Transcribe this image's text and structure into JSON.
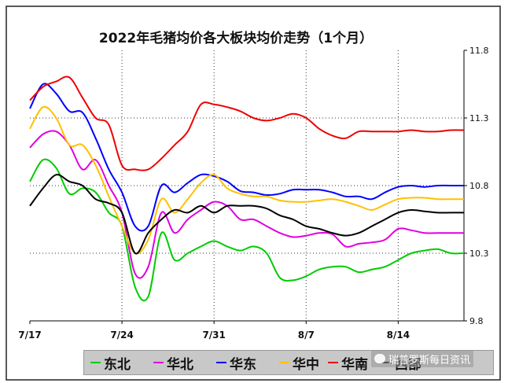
{
  "chart_data": {
    "type": "line",
    "title": "2022年毛猪均价各大板块均价走势（1个月）",
    "x_tick_labels": [
      "7/17",
      "7/24",
      "7/31",
      "8/7",
      "8/14"
    ],
    "y_tick_labels": [
      "11.8",
      "11.3",
      "10.8",
      "10.3",
      "9.8"
    ],
    "ylim": [
      9.8,
      11.8
    ],
    "xlim": [
      0,
      33
    ],
    "grid": "dotted",
    "legend_position": "bottom",
    "x": [
      0,
      1,
      2,
      3,
      4,
      5,
      6,
      7,
      8,
      9,
      10,
      11,
      12,
      13,
      14,
      15,
      16,
      17,
      18,
      19,
      20,
      21,
      22,
      23,
      24,
      25,
      26,
      27,
      28,
      29,
      30,
      31,
      32,
      33
    ],
    "series": [
      {
        "name": "东北",
        "color": "#00cc00",
        "values": [
          10.83,
          10.99,
          10.93,
          10.74,
          10.78,
          10.75,
          10.6,
          10.5,
          10.05,
          9.98,
          10.45,
          10.25,
          10.3,
          10.35,
          10.39,
          10.35,
          10.32,
          10.35,
          10.3,
          10.12,
          10.1,
          10.13,
          10.18,
          10.2,
          10.2,
          10.16,
          10.18,
          10.2,
          10.25,
          10.3,
          10.32,
          10.33,
          10.3,
          10.3
        ]
      },
      {
        "name": "华北",
        "color": "#e000e0",
        "values": [
          11.08,
          11.18,
          11.2,
          11.1,
          10.92,
          10.99,
          10.8,
          10.6,
          10.15,
          10.2,
          10.6,
          10.45,
          10.55,
          10.62,
          10.68,
          10.65,
          10.55,
          10.55,
          10.5,
          10.45,
          10.42,
          10.43,
          10.45,
          10.44,
          10.35,
          10.37,
          10.38,
          10.4,
          10.48,
          10.47,
          10.45,
          10.45,
          10.45,
          10.45
        ]
      },
      {
        "name": "华东",
        "color": "#0000ff",
        "values": [
          11.37,
          11.55,
          11.48,
          11.35,
          11.34,
          11.15,
          10.92,
          10.75,
          10.5,
          10.5,
          10.8,
          10.75,
          10.82,
          10.88,
          10.87,
          10.83,
          10.76,
          10.75,
          10.73,
          10.74,
          10.77,
          10.77,
          10.77,
          10.75,
          10.72,
          10.72,
          10.7,
          10.75,
          10.79,
          10.8,
          10.79,
          10.8,
          10.8,
          10.8
        ]
      },
      {
        "name": "华中",
        "color": "#ffc000",
        "values": [
          11.22,
          11.38,
          11.3,
          11.1,
          11.1,
          10.95,
          10.72,
          10.5,
          10.3,
          10.4,
          10.7,
          10.6,
          10.7,
          10.82,
          10.88,
          10.78,
          10.74,
          10.72,
          10.72,
          10.69,
          10.68,
          10.68,
          10.69,
          10.7,
          10.68,
          10.65,
          10.62,
          10.66,
          10.7,
          10.71,
          10.71,
          10.7,
          10.7,
          10.7
        ]
      },
      {
        "name": "华南",
        "color": "#ee0000",
        "values": [
          11.43,
          11.53,
          11.57,
          11.6,
          11.45,
          11.3,
          11.25,
          10.95,
          10.92,
          10.92,
          11.0,
          11.1,
          11.2,
          11.4,
          11.4,
          11.38,
          11.35,
          11.3,
          11.28,
          11.3,
          11.33,
          11.3,
          11.22,
          11.17,
          11.15,
          11.2,
          11.2,
          11.2,
          11.2,
          11.21,
          11.2,
          11.2,
          11.21,
          11.21
        ]
      },
      {
        "name": "西部",
        "color": "#000000",
        "values": [
          10.65,
          10.78,
          10.88,
          10.83,
          10.8,
          10.7,
          10.67,
          10.6,
          10.3,
          10.45,
          10.55,
          10.62,
          10.6,
          10.65,
          10.6,
          10.65,
          10.65,
          10.65,
          10.63,
          10.58,
          10.55,
          10.5,
          10.48,
          10.45,
          10.43,
          10.45,
          10.5,
          10.55,
          10.6,
          10.62,
          10.61,
          10.6,
          10.6,
          10.6
        ]
      }
    ]
  },
  "watermark": {
    "text": "瑞普罗斯每日资讯"
  }
}
